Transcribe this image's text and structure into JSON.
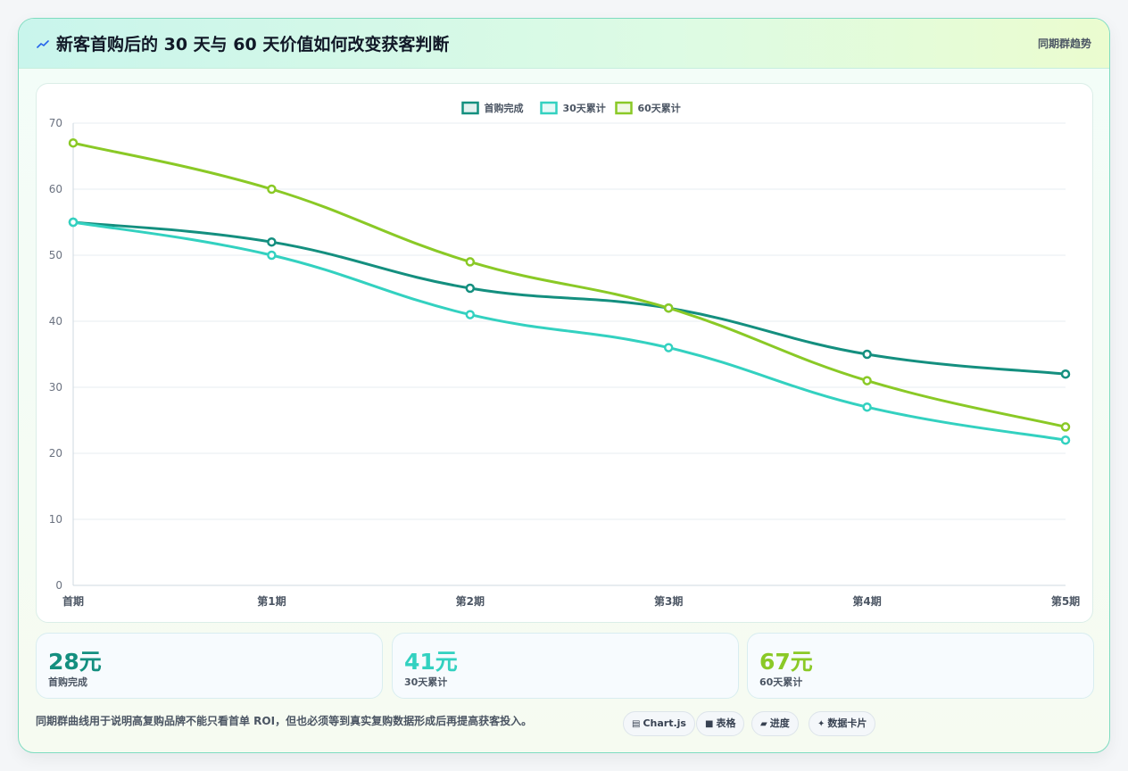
{
  "header": {
    "title": "新客首购后的 30 天与 60 天价值如何改变获客判断",
    "badge": "同期群趋势"
  },
  "chart_data": {
    "type": "line",
    "categories": [
      "首期",
      "第1期",
      "第2期",
      "第3期",
      "第4期",
      "第5期"
    ],
    "series": [
      {
        "name": "首购完成",
        "color": "#148f7f",
        "values": [
          55,
          52,
          45,
          42,
          35,
          32
        ]
      },
      {
        "name": "30天累计",
        "color": "#33d1c0",
        "values": [
          55,
          50,
          41,
          36,
          27,
          22
        ]
      },
      {
        "name": "60天累计",
        "color": "#8ac926",
        "values": [
          67,
          60,
          49,
          42,
          31,
          24
        ]
      }
    ],
    "ylim": [
      0,
      70
    ],
    "yticks": [
      0,
      10,
      20,
      30,
      40,
      50,
      60,
      70
    ],
    "grid": true,
    "legend": "top-center"
  },
  "stats": [
    {
      "value": "28元",
      "label": "首购完成",
      "color": "#148f7f"
    },
    {
      "value": "41元",
      "label": "30天累计",
      "color": "#33d1c0"
    },
    {
      "value": "67元",
      "label": "60天累计",
      "color": "#8ac926"
    }
  ],
  "footer": {
    "note": "同期群曲线用于说明高复购品牌不能只看首单 ROI，但也必须等到真实复购数据形成后再提高获客投入。",
    "pills": [
      {
        "glyph": "▤",
        "label": "Chart.js"
      },
      {
        "glyph": "■",
        "label": "表格"
      },
      {
        "glyph": "▰",
        "label": "进度"
      },
      {
        "glyph": "✦",
        "label": "数据卡片"
      }
    ]
  }
}
